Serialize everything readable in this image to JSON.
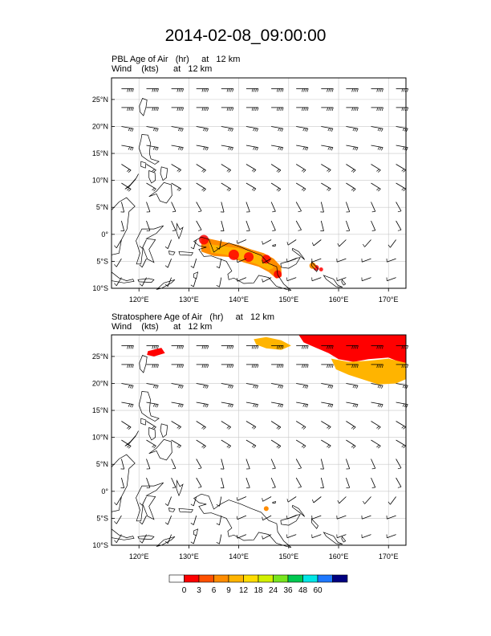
{
  "title": "2014-02-08_09:00:00",
  "panels": [
    {
      "title_line1": "PBL Age of Air   (hr)     at   12 km",
      "title_line2": "Wind    (kts)      at   12 km"
    },
    {
      "title_line1": "Stratosphere Age of Air   (hr)     at   12 km",
      "title_line2": "Wind    (kts)      at   12 km"
    }
  ],
  "axes": {
    "lon_min": 114.5,
    "lon_max": 173.5,
    "lat_min": -10,
    "lat_max": 29,
    "lon_ticks": [
      "120°E",
      "130°E",
      "140°E",
      "150°E",
      "160°E",
      "170°E"
    ],
    "lon_values": [
      120,
      130,
      140,
      150,
      160,
      170
    ],
    "lat_ticks": [
      "25°N",
      "20°N",
      "15°N",
      "10°N",
      "5°N",
      "0°",
      "5°S",
      "10°S"
    ],
    "lat_values": [
      25,
      20,
      15,
      10,
      5,
      0,
      -5,
      -10
    ]
  },
  "colorbar": {
    "values": [
      "0",
      "3",
      "6",
      "9",
      "12",
      "18",
      "24",
      "36",
      "48",
      "60"
    ],
    "colors": [
      "#ffffff",
      "#ff0000",
      "#ff5000",
      "#ff8c00",
      "#ffb400",
      "#ffdc00",
      "#d2f000",
      "#78e61e",
      "#00c850",
      "#00e6e6",
      "#1e78ff",
      "#000080"
    ]
  },
  "colors": {
    "land_outline": "#000000",
    "grid": "#c8c8c8",
    "shade_red": "#ff0000",
    "shade_orange": "#ff8c00",
    "shade_gold": "#ffb400"
  }
}
